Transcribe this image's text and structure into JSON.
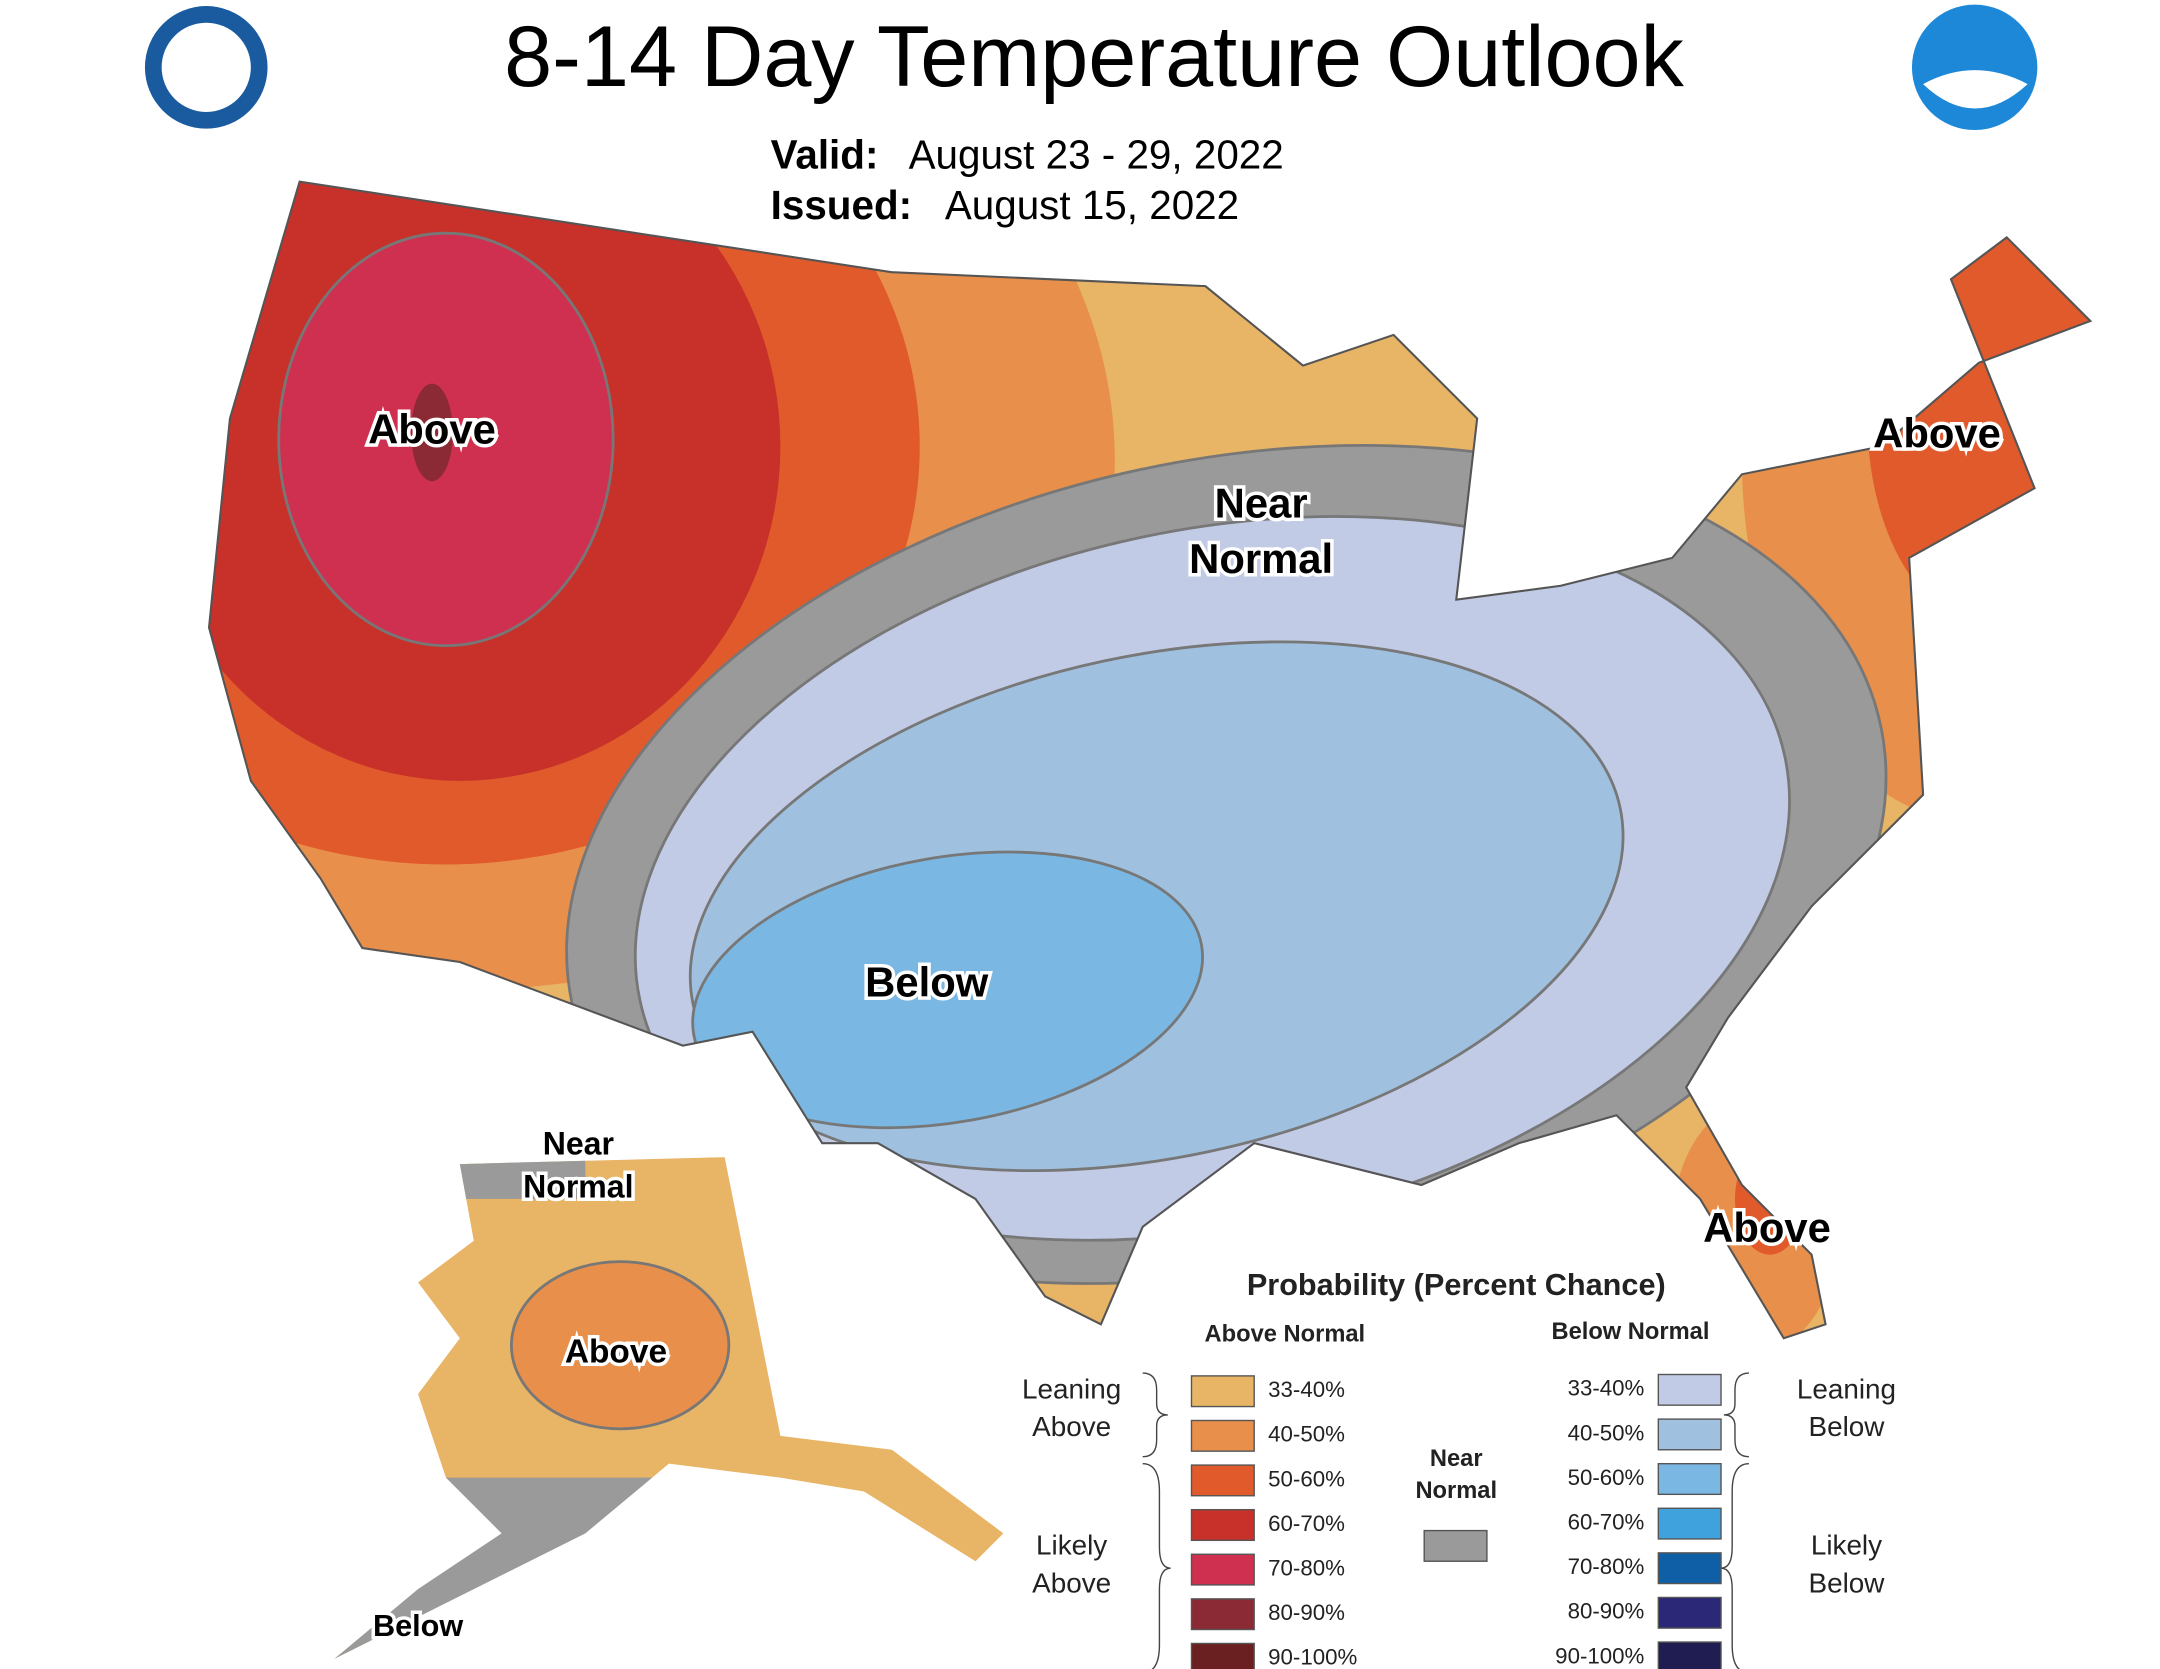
{
  "header": {
    "title": "8-14 Day Temperature Outlook",
    "valid_label": "Valid:",
    "valid": "August 23 - 29, 2022",
    "issued_label": "Issued:",
    "issued": "August 15, 2022"
  },
  "map_labels": [
    {
      "lines": [
        "Above"
      ]
    },
    {
      "lines": [
        "Near",
        "Normal"
      ]
    },
    {
      "lines": [
        "Above"
      ]
    },
    {
      "lines": [
        "Below"
      ]
    },
    {
      "lines": [
        "Above"
      ]
    },
    {
      "lines": [
        "Near",
        "Normal"
      ]
    },
    {
      "lines": [
        "Above"
      ]
    },
    {
      "lines": [
        "Below"
      ]
    }
  ],
  "legend": {
    "title": "Probability (Percent Chance)",
    "above": {
      "heading": "Above Normal",
      "items": [
        {
          "label": "33-40%",
          "color": "#e8b466"
        },
        {
          "label": "40-50%",
          "color": "#e8904b"
        },
        {
          "label": "50-60%",
          "color": "#e05a2c"
        },
        {
          "label": "60-70%",
          "color": "#c8302a"
        },
        {
          "label": "70-80%",
          "color": "#d03050"
        },
        {
          "label": "80-90%",
          "color": "#8b2a35"
        },
        {
          "label": "90-100%",
          "color": "#6a2020"
        }
      ],
      "groups": [
        {
          "lines": [
            "Leaning",
            "Above"
          ]
        },
        {
          "lines": [
            "Likely",
            "Above"
          ]
        }
      ]
    },
    "below": {
      "heading": "Below Normal",
      "items": [
        {
          "label": "33-40%",
          "color": "#c2cbe6"
        },
        {
          "label": "40-50%",
          "color": "#9fc0df"
        },
        {
          "label": "50-60%",
          "color": "#7ab7e2"
        },
        {
          "label": "60-70%",
          "color": "#3fa2dd"
        },
        {
          "label": "70-80%",
          "color": "#0e5fa6"
        },
        {
          "label": "80-90%",
          "color": "#2b2878"
        },
        {
          "label": "90-100%",
          "color": "#1f1d52"
        }
      ],
      "groups": [
        {
          "lines": [
            "Leaning",
            "Below"
          ]
        },
        {
          "lines": [
            "Likely",
            "Below"
          ]
        }
      ]
    },
    "near": {
      "lines": [
        "Near",
        "Normal"
      ],
      "color": "#9a9a9a"
    }
  }
}
